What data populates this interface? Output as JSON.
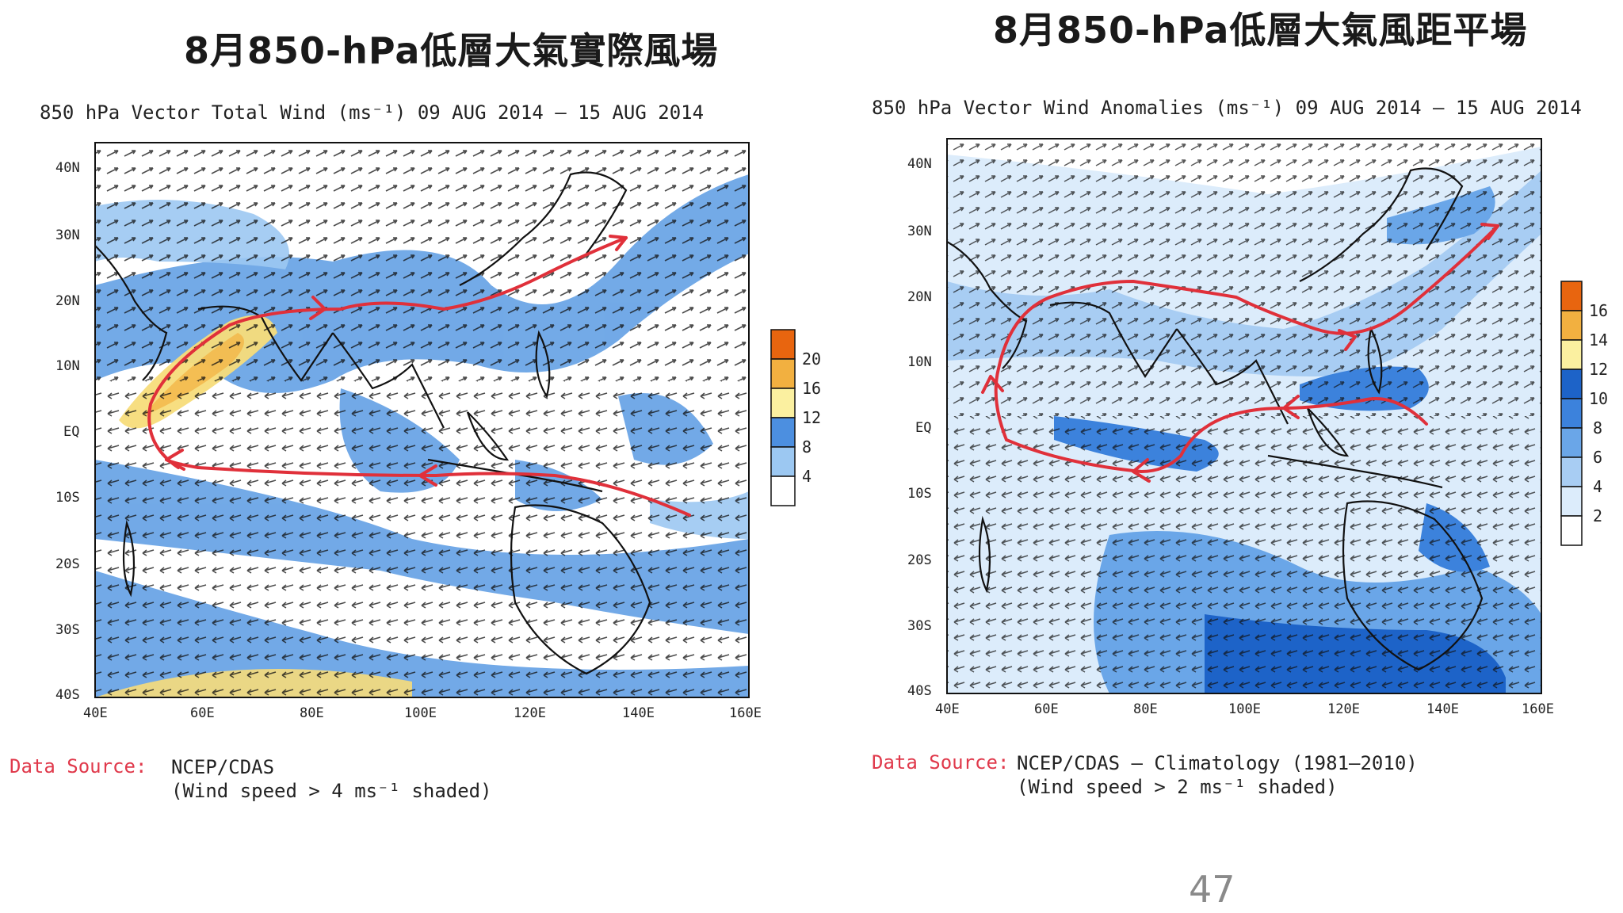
{
  "page_number": "47",
  "left_panel": {
    "title": "8月850-hPa低層大氣實際風場",
    "header": "850 hPa Vector Total Wind (ms⁻¹) 09 AUG 2014 – 15 AUG 2014",
    "lat_labels": [
      "40N",
      "30N",
      "20N",
      "10N",
      "EQ",
      "10S",
      "20S",
      "30S",
      "40S"
    ],
    "lon_labels": [
      "40E",
      "60E",
      "80E",
      "100E",
      "120E",
      "140E",
      "160E"
    ],
    "colorbar": {
      "labels": [
        "20",
        "16",
        "12",
        "8",
        "4"
      ],
      "colors": [
        "#e8650f",
        "#f2b040",
        "#fbf0a0",
        "#4c8fe0",
        "#9cc8f2",
        "#ffffff"
      ]
    },
    "source_label": "Data Source:",
    "source_line1": "NCEP/CDAS",
    "source_line2": "(Wind speed > 4 ms⁻¹ shaded)"
  },
  "right_panel": {
    "title": "8月850-hPa低層大氣風距平場",
    "header": "850 hPa Vector Wind Anomalies (ms⁻¹) 09 AUG 2014 – 15 AUG 2014",
    "lat_labels": [
      "40N",
      "30N",
      "20N",
      "10N",
      "EQ",
      "10S",
      "20S",
      "30S",
      "40S"
    ],
    "lon_labels": [
      "40E",
      "60E",
      "80E",
      "100E",
      "120E",
      "140E",
      "160E"
    ],
    "colorbar": {
      "labels": [
        "16",
        "14",
        "12",
        "10",
        "8",
        "6",
        "4",
        "2"
      ],
      "colors": [
        "#e8650f",
        "#f2b040",
        "#fbf0a0",
        "#1d63c8",
        "#3c82dc",
        "#6aa6e8",
        "#a8cdf3",
        "#dcecfb",
        "#ffffff"
      ]
    },
    "source_label": "Data Source:",
    "source_line1": "NCEP/CDAS – Climatology (1981–2010)",
    "source_line2": "(Wind speed > 2 ms⁻¹ shaded)"
  },
  "colors": {
    "arrow_red": "#e0303a",
    "coast": "#111111",
    "shade_blue": "#5a9be3"
  }
}
